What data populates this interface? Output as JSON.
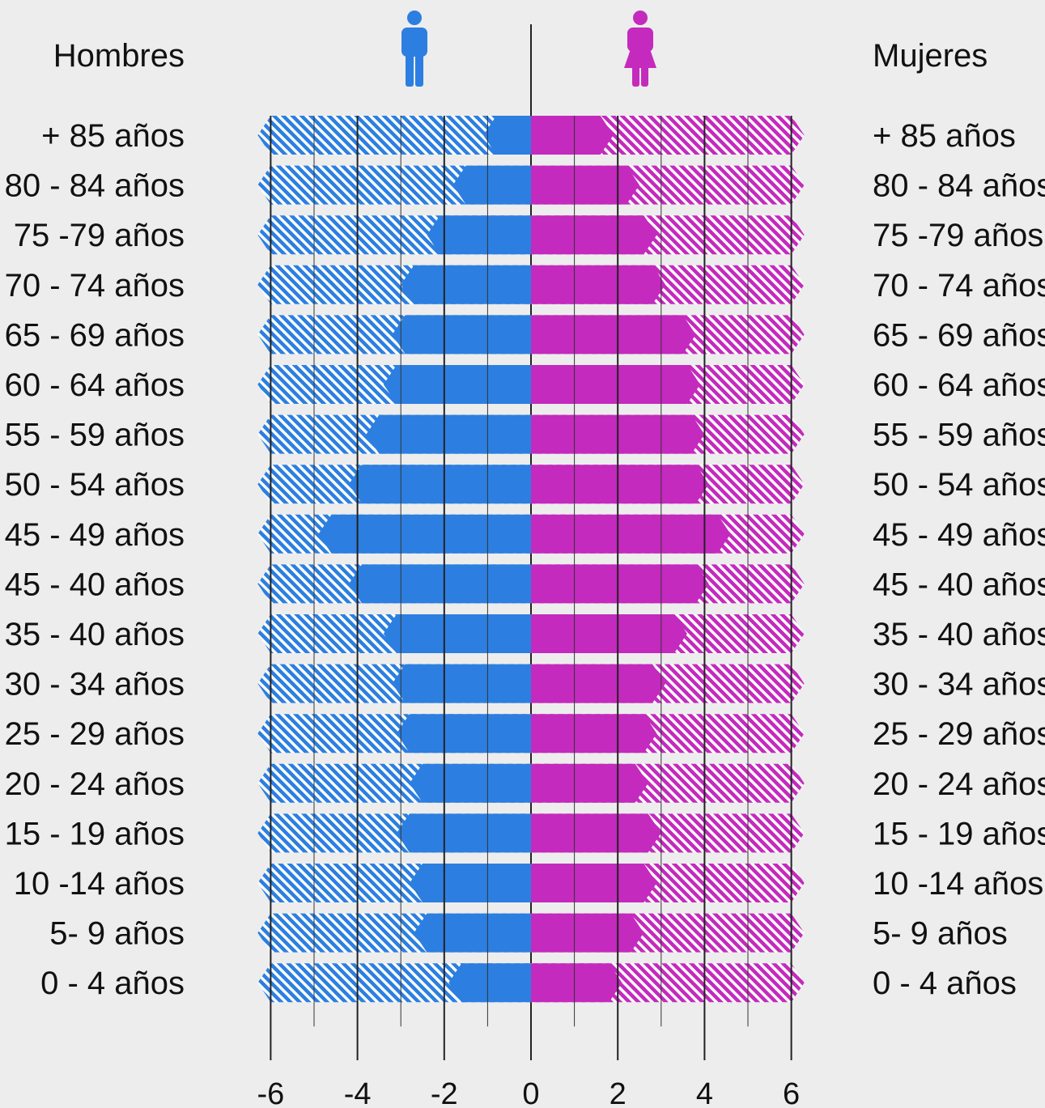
{
  "headers": {
    "left": "Hombres",
    "right": "Mujeres"
  },
  "icons": {
    "male": "man-icon",
    "female": "woman-icon"
  },
  "colors": {
    "male": "#2c7fe0",
    "female": "#c42abd",
    "background": "#ededed",
    "grid": "#222222"
  },
  "chart_data": {
    "type": "bar",
    "subtype": "population-pyramid",
    "categories": [
      "+ 85 años",
      "80 - 84 años",
      "75 -79 años",
      "70 - 74 años",
      "65 - 69 años",
      "60 - 64 años",
      "55 - 59 años",
      "50 - 54 años",
      "45 - 49 años",
      "45 - 40 años",
      "35 - 40 años",
      "30 - 34 años",
      "25 - 29 años",
      "20 - 24 años",
      "15 - 19 años",
      "10 -14 años",
      "5- 9 años",
      "0 - 4 años"
    ],
    "series": [
      {
        "name": "Hombres",
        "values": [
          0.8,
          1.5,
          2.1,
          2.7,
          2.9,
          3.1,
          3.5,
          3.9,
          4.6,
          3.9,
          3.1,
          2.9,
          2.8,
          2.5,
          2.8,
          2.5,
          2.4,
          1.6
        ]
      },
      {
        "name": "Mujeres",
        "values": [
          1.6,
          2.2,
          2.6,
          2.8,
          3.5,
          3.6,
          3.7,
          3.8,
          4.3,
          3.8,
          3.3,
          2.8,
          2.6,
          2.4,
          2.7,
          2.6,
          2.3,
          1.8
        ]
      }
    ],
    "xlim": [
      -6,
      6
    ],
    "xticks": [
      -6,
      -4,
      -2,
      0,
      2,
      4,
      6
    ],
    "xtick_labels": [
      "-6",
      "-4",
      "-2",
      "0",
      "2",
      "4",
      "6"
    ],
    "grid": true
  }
}
